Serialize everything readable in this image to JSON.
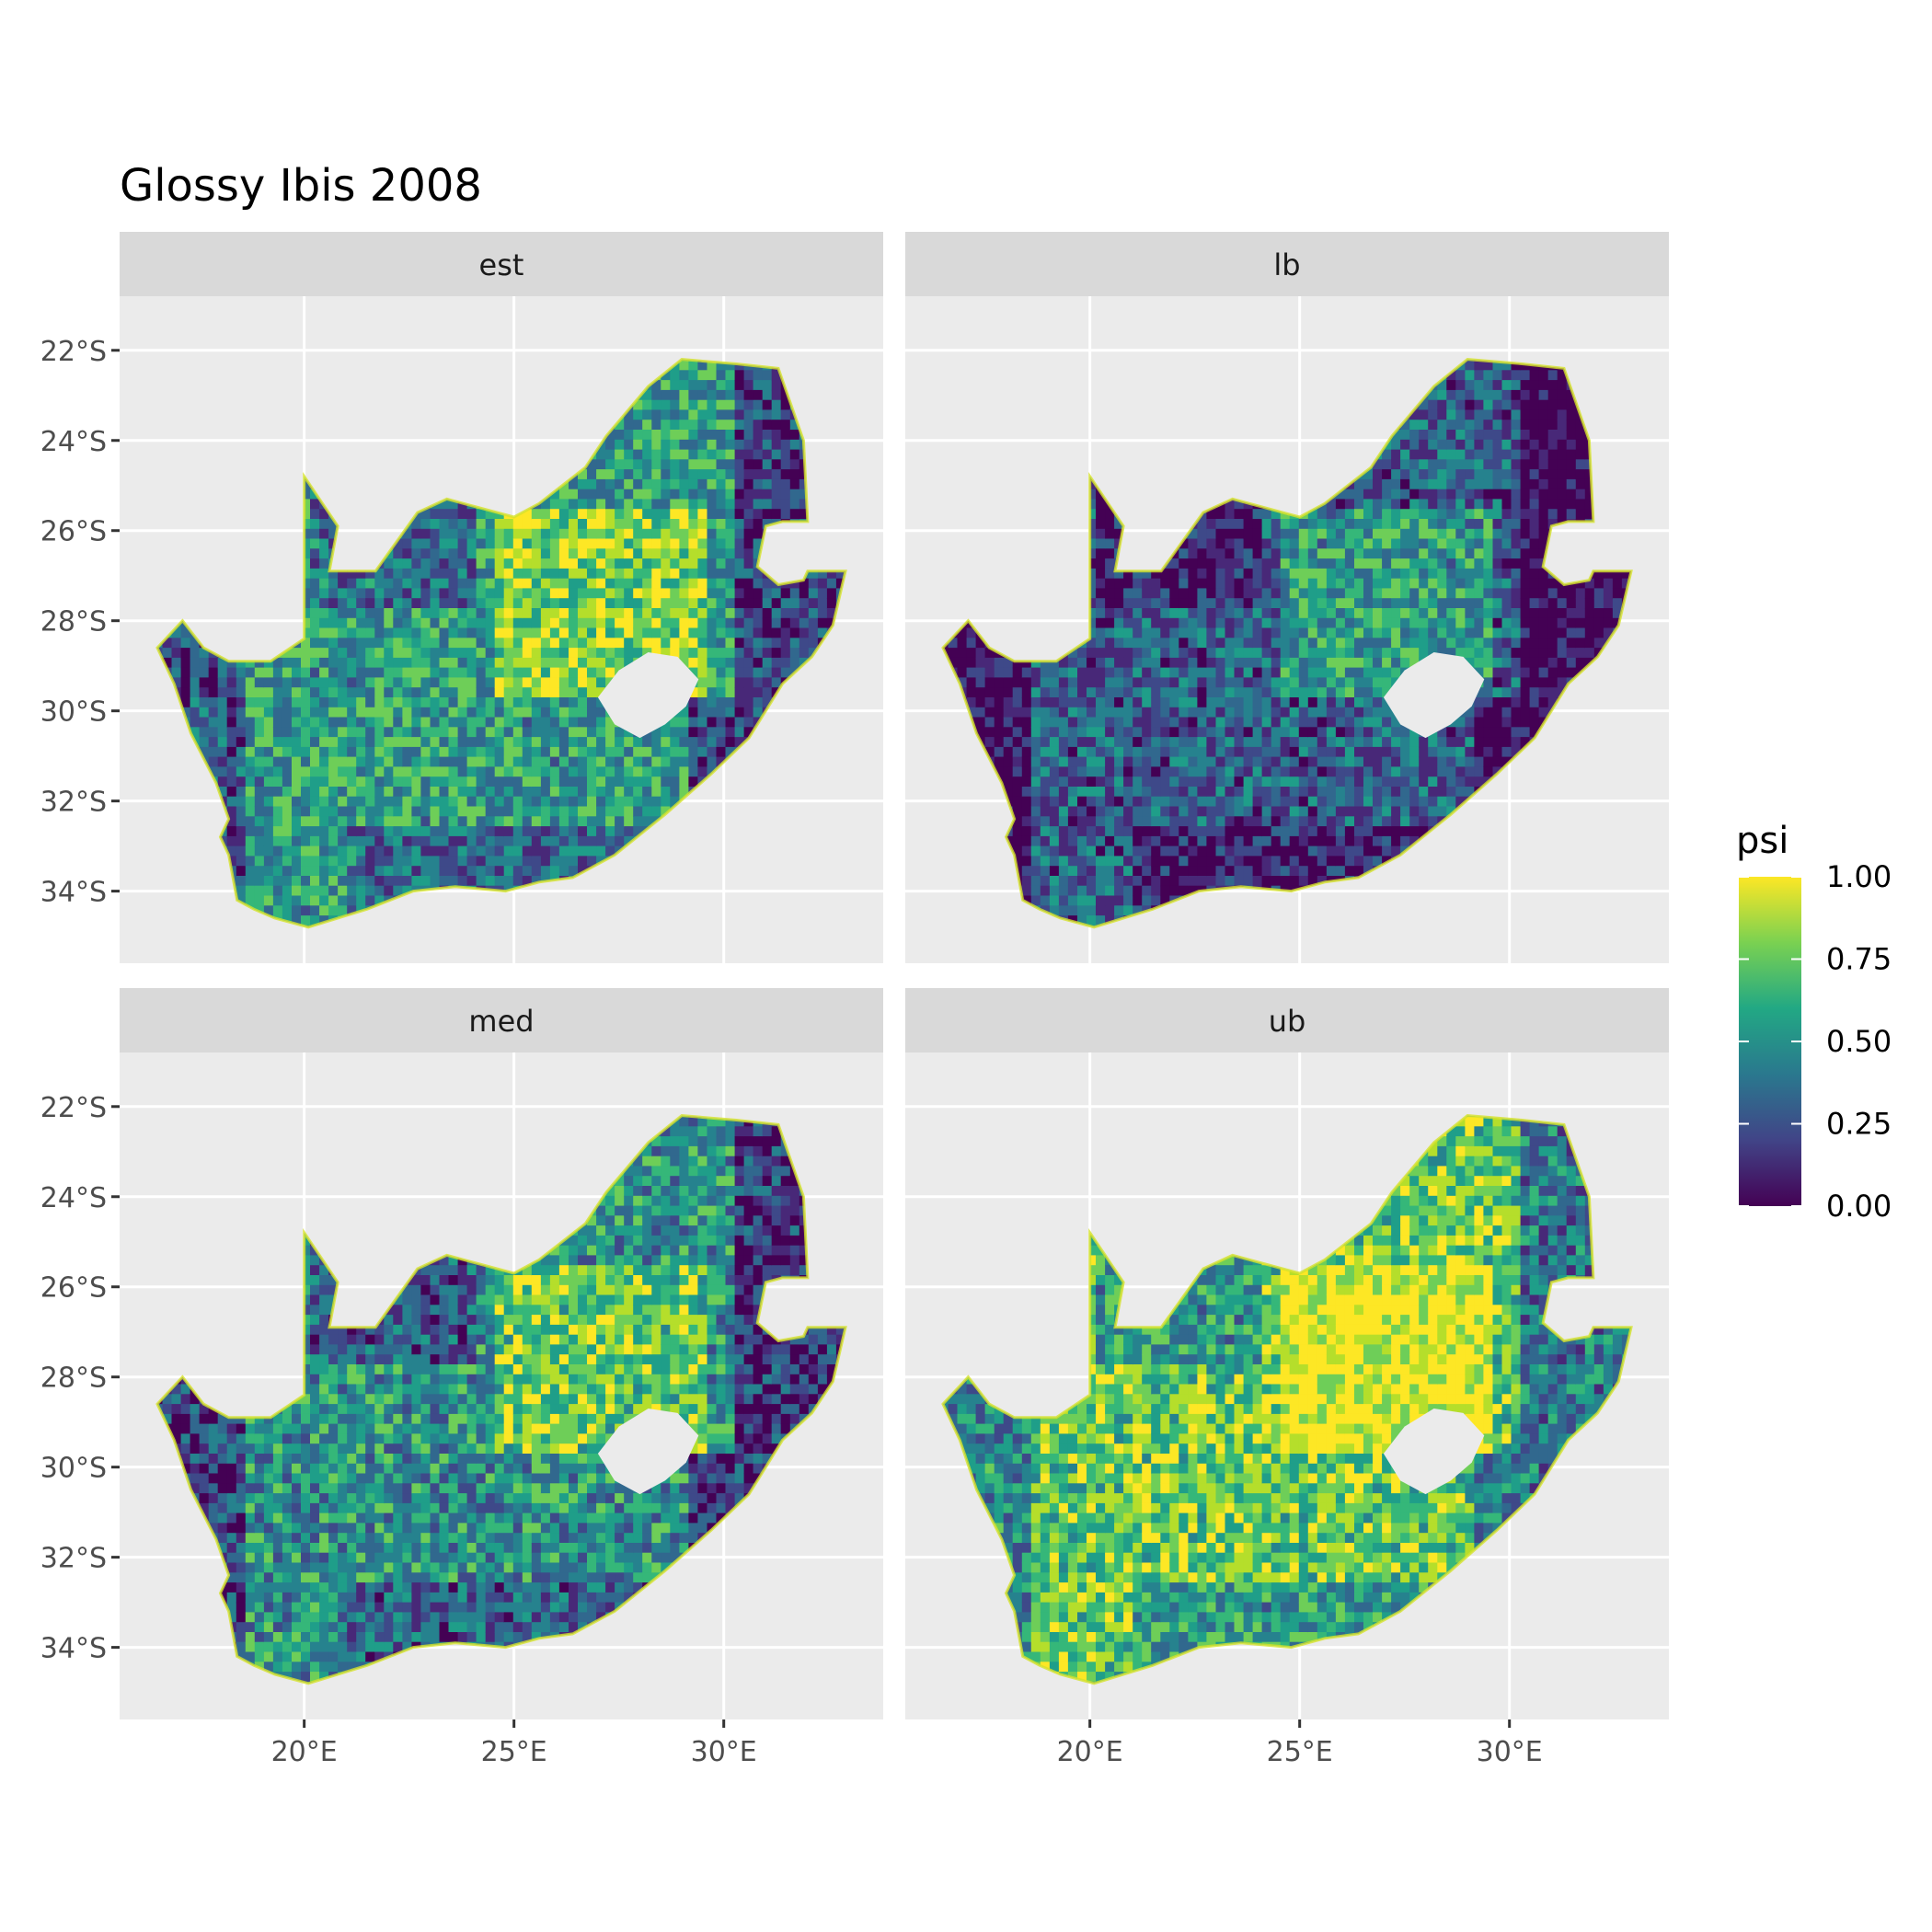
{
  "title": "Glossy Ibis 2008",
  "panels": [
    {
      "label": "est"
    },
    {
      "label": "lb"
    },
    {
      "label": "med"
    },
    {
      "label": "ub"
    }
  ],
  "y_ticks": [
    "22°S",
    "24°S",
    "26°S",
    "28°S",
    "30°S",
    "32°S",
    "34°S"
  ],
  "x_ticks": [
    "20°E",
    "25°E",
    "30°E"
  ],
  "legend": {
    "title": "psi",
    "labels": [
      "1.00",
      "0.75",
      "0.50",
      "0.25",
      "0.00"
    ],
    "colors": [
      "#fde725",
      "#7ad151",
      "#22a884",
      "#2a788e",
      "#414487",
      "#440154"
    ]
  },
  "chart_data": {
    "type": "heatmap",
    "title": "Glossy Ibis 2008",
    "facets": [
      "est",
      "lb",
      "med",
      "ub"
    ],
    "variable": "psi",
    "color_range": [
      0,
      1
    ],
    "x_ticks_deg_E": [
      20,
      25,
      30
    ],
    "y_ticks_deg_S": [
      22,
      24,
      26,
      28,
      30,
      32,
      34
    ],
    "extent": {
      "lon": [
        16.5,
        33.0
      ],
      "lat": [
        -34.8,
        -22.1
      ]
    },
    "panel_mean_psi": {
      "est": 0.55,
      "lb": 0.3,
      "med": 0.5,
      "ub": 0.75
    },
    "grid": true,
    "legend_position": "right"
  }
}
